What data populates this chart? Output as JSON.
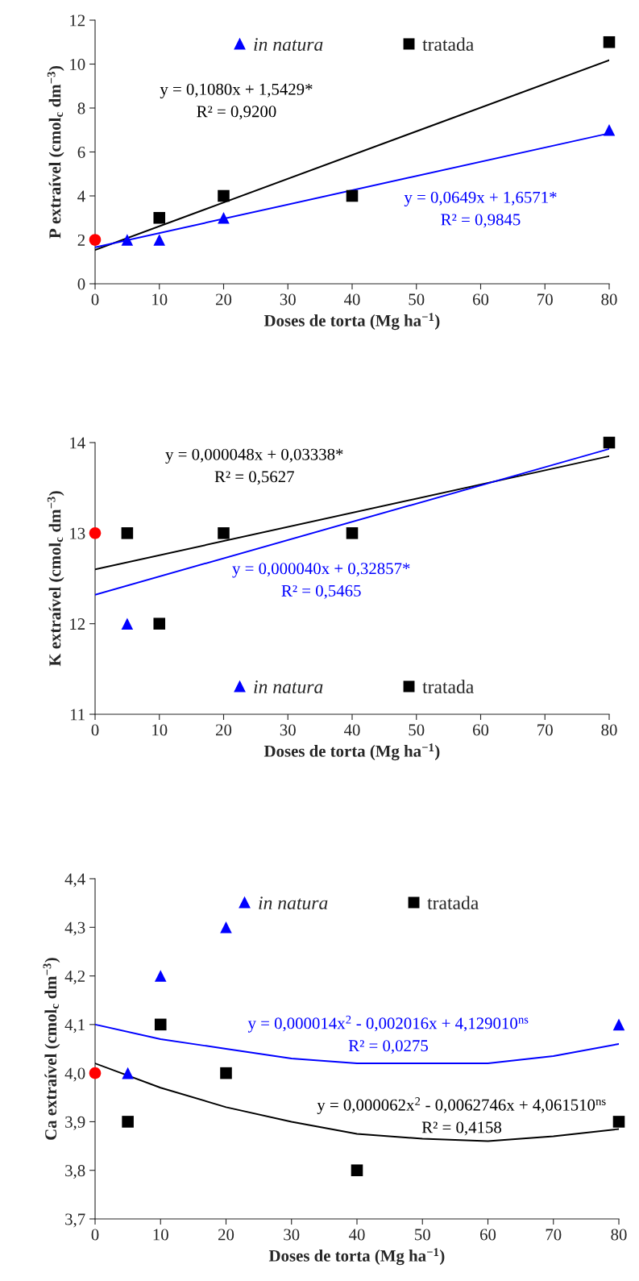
{
  "chart_data": [
    {
      "type": "scatter",
      "xlabel": "Doses de torta (Mg ha$^{−1}$)",
      "ylabel": "P extraível (cmol$_{c}$ dm$^{−3}$)",
      "xlim": [
        0,
        80
      ],
      "xticks": [
        0,
        10,
        20,
        30,
        40,
        50,
        60,
        70,
        80
      ],
      "ylim": [
        0,
        12
      ],
      "yticks": [
        0,
        2,
        4,
        6,
        8,
        10,
        12
      ],
      "grid": false,
      "legend": "top",
      "series": [
        {
          "name": "in natura",
          "color": "#0000ff",
          "marker": "triangle",
          "x": [
            5,
            10,
            20,
            80
          ],
          "values": [
            2,
            2,
            3,
            7
          ]
        },
        {
          "name": "tratada",
          "color": "#000000",
          "marker": "square",
          "x": [
            10,
            20,
            40,
            80
          ],
          "values": [
            3,
            4,
            4,
            11
          ]
        },
        {
          "color": "#ff0000",
          "marker": "circle",
          "x": [
            0
          ],
          "values": [
            2
          ]
        },
        {
          "type": "line",
          "color": "#000000",
          "x": [
            0,
            80
          ],
          "values": [
            1.54,
            10.18
          ]
        },
        {
          "type": "line",
          "color": "#0000ff",
          "x": [
            0,
            80
          ],
          "values": [
            1.66,
            6.85
          ]
        }
      ],
      "annotations": [
        "y = 0,1080x + 1,5429*\nR² = 0,9200",
        "y = 0,0649x + 1,6571*\nR² = 0,9845"
      ]
    },
    {
      "type": "scatter",
      "xlabel": "Doses de torta (Mg ha$^{−1}$)",
      "ylabel": "K extraível (cmol$_{c}$ dm$^{−3}$)",
      "xlim": [
        0,
        80
      ],
      "xticks": [
        0,
        10,
        20,
        30,
        40,
        50,
        60,
        70,
        80
      ],
      "ylim": [
        11,
        14
      ],
      "yticks": [
        11,
        12,
        13,
        14
      ],
      "grid": false,
      "legend": "bottom",
      "series": [
        {
          "name": "in natura",
          "color": "#0000ff",
          "marker": "triangle",
          "x": [
            5
          ],
          "values": [
            12
          ]
        },
        {
          "name": "tratada",
          "color": "#000000",
          "marker": "square",
          "x": [
            5,
            10,
            20,
            40,
            80
          ],
          "values": [
            13,
            12,
            13,
            13,
            14
          ]
        },
        {
          "color": "#ff0000",
          "marker": "circle",
          "x": [
            0
          ],
          "values": [
            13
          ]
        },
        {
          "type": "line",
          "color": "#000000",
          "x": [
            0,
            80
          ],
          "values": [
            12.6,
            13.85
          ]
        },
        {
          "type": "line",
          "color": "#0000ff",
          "x": [
            0,
            80
          ],
          "values": [
            12.32,
            13.93
          ]
        }
      ],
      "annotations": [
        "y = 0,000048x + 0,03338*\nR² = 0,5627",
        "y = 0,000040x + 0,32857*\nR² = 0,5465"
      ]
    },
    {
      "type": "scatter",
      "xlabel": "Doses de torta (Mg ha$^{−1}$)",
      "ylabel": "Ca extraível (cmol$_{c}$ dm$^{−3}$)",
      "xlim": [
        0,
        80
      ],
      "xticks": [
        0,
        10,
        20,
        30,
        40,
        50,
        60,
        70,
        80
      ],
      "ylim": [
        3.7,
        4.4
      ],
      "yticks": [
        {
          "value": 3.7,
          "label": "3,7"
        },
        {
          "value": 3.8,
          "label": "3,8"
        },
        {
          "value": 3.9,
          "label": "3,9"
        },
        {
          "value": 4.0,
          "label": "4,0"
        },
        {
          "value": 4.1,
          "label": "4,1"
        },
        {
          "value": 4.2,
          "label": "4,2"
        },
        {
          "value": 4.3,
          "label": "4,3"
        },
        {
          "value": 4.4,
          "label": "4,4"
        }
      ],
      "grid": false,
      "legend": "top",
      "series": [
        {
          "name": "in natura",
          "color": "#0000ff",
          "marker": "triangle",
          "x": [
            5,
            10,
            20,
            80
          ],
          "values": [
            4.0,
            4.2,
            4.3,
            4.1
          ]
        },
        {
          "name": "tratada",
          "color": "#000000",
          "marker": "square",
          "x": [
            5,
            10,
            20,
            40,
            80
          ],
          "values": [
            3.9,
            4.1,
            4.0,
            3.8,
            3.9
          ]
        },
        {
          "color": "#ff0000",
          "marker": "circle",
          "x": [
            0
          ],
          "values": [
            4.0
          ]
        },
        {
          "type": "line",
          "color": "#0000ff",
          "x": [
            0,
            10,
            20,
            30,
            40,
            50,
            60,
            70,
            80
          ],
          "values": [
            4.1,
            4.07,
            4.05,
            4.03,
            4.02,
            4.02,
            4.02,
            4.035,
            4.06
          ]
        },
        {
          "type": "line",
          "color": "#000000",
          "x": [
            0,
            10,
            20,
            30,
            40,
            50,
            60,
            70,
            80
          ],
          "values": [
            4.02,
            3.97,
            3.93,
            3.9,
            3.875,
            3.865,
            3.86,
            3.87,
            3.885
          ]
        }
      ],
      "annotations": [
        "y = 0,000014x$^{2}$ - 0,002016x + 4,129010$^{ns}$\nR² = 0,0275",
        "y = 0,000062x$^{2}$ - 0,0062746x + 4,061510$^{ns}$\nR² = 0,4158"
      ]
    }
  ]
}
